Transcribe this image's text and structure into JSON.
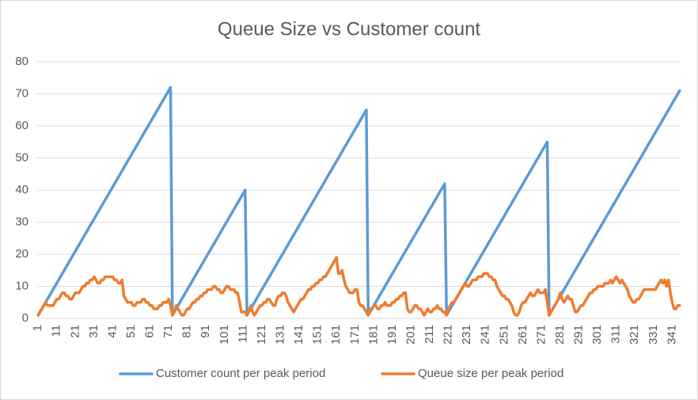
{
  "chart_data": {
    "type": "line",
    "title": "Queue Size vs Customer count",
    "x": [
      1,
      2,
      3,
      4,
      5,
      6,
      7,
      8,
      9,
      10,
      11,
      12,
      13,
      14,
      15,
      16,
      17,
      18,
      19,
      20,
      21,
      22,
      23,
      24,
      25,
      26,
      27,
      28,
      29,
      30,
      31,
      32,
      33,
      34,
      35,
      36,
      37,
      38,
      39,
      40,
      41,
      42,
      43,
      44,
      45,
      46,
      47,
      48,
      49,
      50,
      51,
      52,
      53,
      54,
      55,
      56,
      57,
      58,
      59,
      60,
      61,
      62,
      63,
      64,
      65,
      66,
      67,
      68,
      69,
      70,
      71,
      72,
      73,
      74,
      75,
      76,
      77,
      78,
      79,
      80,
      81,
      82,
      83,
      84,
      85,
      86,
      87,
      88,
      89,
      90,
      91,
      92,
      93,
      94,
      95,
      96,
      97,
      98,
      99,
      100,
      101,
      102,
      103,
      104,
      105,
      106,
      107,
      108,
      109,
      110,
      111,
      112,
      113,
      114,
      115,
      116,
      117,
      118,
      119,
      120,
      121,
      122,
      123,
      124,
      125,
      126,
      127,
      128,
      129,
      130,
      131,
      132,
      133,
      134,
      135,
      136,
      137,
      138,
      139,
      140,
      141,
      142,
      143,
      144,
      145,
      146,
      147,
      148,
      149,
      150,
      151,
      152,
      153,
      154,
      155,
      156,
      157,
      158,
      159,
      160,
      161,
      162,
      163,
      164,
      165,
      166,
      167,
      168,
      169,
      170,
      171,
      172,
      173,
      174,
      175,
      176,
      177,
      178,
      179,
      180,
      181,
      182,
      183,
      184,
      185,
      186,
      187,
      188,
      189,
      190,
      191,
      192,
      193,
      194,
      195,
      196,
      197,
      198,
      199,
      200,
      201,
      202,
      203,
      204,
      205,
      206,
      207,
      208,
      209,
      210,
      211,
      212,
      213,
      214,
      215,
      216,
      217,
      218,
      219,
      220,
      221,
      222,
      223,
      224,
      225,
      226,
      227,
      228,
      229,
      230,
      231,
      232,
      233,
      234,
      235,
      236,
      237,
      238,
      239,
      240,
      241,
      242,
      243,
      244,
      245,
      246,
      247,
      248,
      249,
      250,
      251,
      252,
      253,
      254,
      255,
      256,
      257,
      258,
      259,
      260,
      261,
      262,
      263,
      264,
      265,
      266,
      267,
      268,
      269,
      270,
      271,
      272,
      273,
      274,
      275,
      276,
      277,
      278,
      279,
      280,
      281,
      282,
      283,
      284,
      285,
      286,
      287,
      288,
      289,
      290,
      291,
      292,
      293,
      294,
      295,
      296,
      297,
      298,
      299,
      300,
      301,
      302,
      303,
      304,
      305,
      306,
      307,
      308,
      309,
      310,
      311,
      312,
      313,
      314,
      315,
      316,
      317,
      318,
      319,
      320,
      321,
      322,
      323,
      324,
      325,
      326,
      327,
      328,
      329,
      330,
      331,
      332,
      333,
      334,
      335,
      336,
      337,
      338,
      339,
      340,
      341,
      342,
      343,
      344,
      345
    ],
    "series": [
      {
        "name": "Customer count per peak period",
        "color": "#5b9bd5",
        "values": [
          1,
          2,
          3,
          4,
          5,
          6,
          7,
          8,
          9,
          10,
          11,
          12,
          13,
          14,
          15,
          16,
          17,
          18,
          19,
          20,
          21,
          22,
          23,
          24,
          25,
          26,
          27,
          28,
          29,
          30,
          31,
          32,
          33,
          34,
          35,
          36,
          37,
          38,
          39,
          40,
          41,
          42,
          43,
          44,
          45,
          46,
          47,
          48,
          49,
          50,
          51,
          52,
          53,
          54,
          55,
          56,
          57,
          58,
          59,
          60,
          61,
          62,
          63,
          64,
          65,
          66,
          67,
          68,
          69,
          70,
          71,
          72,
          1,
          2,
          3,
          4,
          5,
          6,
          7,
          8,
          9,
          10,
          11,
          12,
          13,
          14,
          15,
          16,
          17,
          18,
          19,
          20,
          21,
          22,
          23,
          24,
          25,
          26,
          27,
          28,
          29,
          30,
          31,
          32,
          33,
          34,
          35,
          36,
          37,
          38,
          39,
          40,
          1,
          2,
          3,
          4,
          5,
          6,
          7,
          8,
          9,
          10,
          11,
          12,
          13,
          14,
          15,
          16,
          17,
          18,
          19,
          20,
          21,
          22,
          23,
          24,
          25,
          26,
          27,
          28,
          29,
          30,
          31,
          32,
          33,
          34,
          35,
          36,
          37,
          38,
          39,
          40,
          41,
          42,
          43,
          44,
          45,
          46,
          47,
          48,
          49,
          50,
          51,
          52,
          53,
          54,
          55,
          56,
          57,
          58,
          59,
          60,
          61,
          62,
          63,
          64,
          65,
          1,
          2,
          3,
          4,
          5,
          6,
          7,
          8,
          9,
          10,
          11,
          12,
          13,
          14,
          15,
          16,
          17,
          18,
          19,
          20,
          21,
          22,
          23,
          24,
          25,
          26,
          27,
          28,
          29,
          30,
          31,
          32,
          33,
          34,
          35,
          36,
          37,
          38,
          39,
          40,
          41,
          42,
          1,
          2,
          3,
          4,
          5,
          6,
          7,
          8,
          9,
          10,
          11,
          12,
          13,
          14,
          15,
          16,
          17,
          18,
          19,
          20,
          21,
          22,
          23,
          24,
          25,
          26,
          27,
          28,
          29,
          30,
          31,
          32,
          33,
          34,
          35,
          36,
          37,
          38,
          39,
          40,
          41,
          42,
          43,
          44,
          45,
          46,
          47,
          48,
          49,
          50,
          51,
          52,
          53,
          54,
          55,
          1,
          2,
          3,
          4,
          5,
          6,
          7,
          8,
          9,
          10,
          11,
          12,
          13,
          14,
          15,
          16,
          17,
          18,
          19,
          20,
          21,
          22,
          23,
          24,
          25,
          26,
          27,
          28,
          29,
          30,
          31,
          32,
          33,
          34,
          35,
          36,
          37,
          38,
          39,
          40,
          41,
          42,
          43,
          44,
          45,
          46,
          47,
          48,
          49,
          50,
          51,
          52,
          53,
          54,
          55,
          56,
          57,
          58,
          59,
          60,
          61,
          62,
          63,
          64,
          65,
          66,
          67,
          68,
          69,
          70,
          71
        ]
      },
      {
        "name": "Queue size per peak period",
        "color": "#ed7d31",
        "values": [
          1,
          2,
          3,
          4,
          5,
          4,
          4,
          4,
          4,
          5,
          6,
          6,
          7,
          8,
          8,
          7,
          7,
          6,
          6,
          7,
          8,
          8,
          8,
          9,
          10,
          10,
          11,
          11,
          12,
          12,
          13,
          12,
          11,
          11,
          12,
          12,
          13,
          13,
          13,
          13,
          13,
          12,
          12,
          11,
          11,
          12,
          7,
          6,
          5,
          5,
          5,
          4,
          4,
          5,
          5,
          5,
          6,
          6,
          5,
          5,
          4,
          4,
          3,
          3,
          3,
          4,
          4,
          5,
          5,
          5,
          6,
          4,
          1,
          2,
          4,
          3,
          2,
          1,
          1,
          2,
          3,
          3,
          4,
          5,
          5,
          6,
          6,
          7,
          7,
          8,
          8,
          9,
          9,
          9,
          10,
          10,
          9,
          9,
          8,
          8,
          9,
          10,
          10,
          9,
          9,
          9,
          8,
          8,
          5,
          2,
          2,
          2,
          1,
          2,
          4,
          2,
          1,
          2,
          3,
          4,
          4,
          5,
          5,
          6,
          6,
          5,
          4,
          4,
          6,
          7,
          7,
          8,
          8,
          7,
          5,
          4,
          3,
          2,
          3,
          4,
          5,
          6,
          6,
          7,
          8,
          9,
          9,
          10,
          10,
          11,
          11,
          12,
          12,
          13,
          13,
          14,
          15,
          16,
          17,
          18,
          19,
          14,
          14,
          15,
          12,
          10,
          9,
          8,
          8,
          8,
          9,
          9,
          5,
          4,
          4,
          3,
          2,
          1,
          3,
          3,
          4,
          4,
          3,
          3,
          4,
          4,
          5,
          4,
          4,
          4,
          5,
          5,
          6,
          6,
          7,
          7,
          8,
          8,
          3,
          2,
          2,
          3,
          4,
          4,
          3,
          3,
          2,
          1,
          2,
          3,
          2,
          2,
          3,
          3,
          4,
          3,
          3,
          2,
          2,
          1,
          3,
          4,
          5,
          5,
          6,
          7,
          8,
          9,
          10,
          11,
          10,
          10,
          11,
          12,
          12,
          12,
          13,
          13,
          13,
          14,
          14,
          14,
          13,
          13,
          12,
          12,
          10,
          9,
          8,
          7,
          7,
          6,
          6,
          5,
          4,
          2,
          1,
          1,
          2,
          4,
          5,
          5,
          6,
          7,
          8,
          7,
          7,
          8,
          9,
          8,
          8,
          8,
          9,
          5,
          1,
          2,
          3,
          4,
          5,
          6,
          8,
          6,
          5,
          6,
          7,
          6,
          6,
          4,
          2,
          2,
          3,
          4,
          4,
          5,
          6,
          7,
          8,
          8,
          9,
          9,
          10,
          10,
          10,
          10,
          11,
          11,
          11,
          12,
          11,
          12,
          13,
          12,
          11,
          12,
          11,
          10,
          9,
          7,
          6,
          5,
          5,
          6,
          6,
          7,
          8,
          9,
          9,
          9,
          9,
          9,
          9,
          9,
          10,
          11,
          12,
          11,
          12,
          10,
          12,
          8,
          5,
          3,
          3,
          4,
          4
        ]
      }
    ],
    "xlim": [
      0.5,
      345.5
    ],
    "xticks": [
      1,
      11,
      21,
      31,
      41,
      51,
      61,
      71,
      81,
      91,
      101,
      111,
      121,
      131,
      141,
      151,
      161,
      171,
      181,
      191,
      201,
      211,
      221,
      231,
      241,
      251,
      261,
      271,
      281,
      291,
      301,
      311,
      321,
      331,
      341
    ],
    "ylim": [
      0,
      80
    ],
    "yticks": [
      0,
      10,
      20,
      30,
      40,
      50,
      60,
      70,
      80
    ],
    "grid": true,
    "legend": "bottom"
  }
}
